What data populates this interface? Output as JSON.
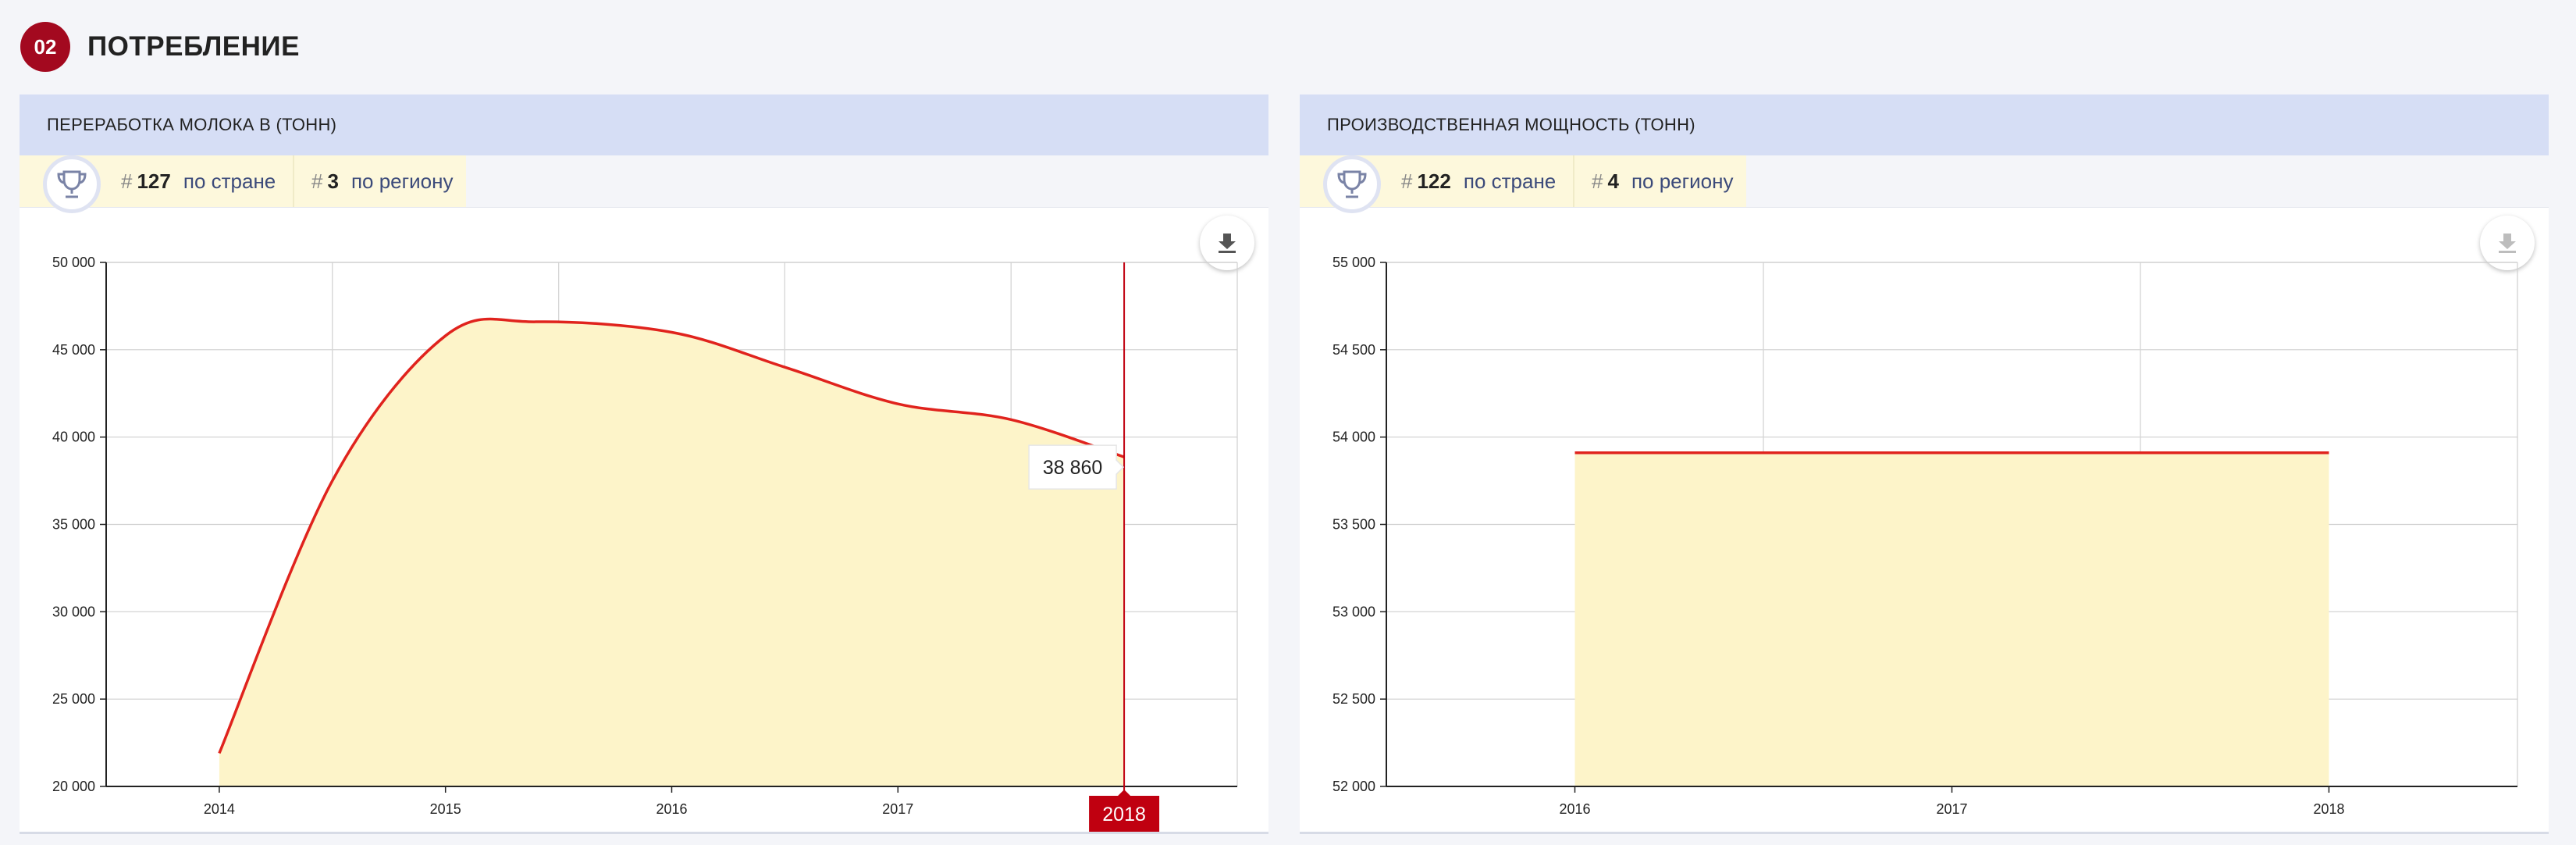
{
  "section": {
    "number": "02",
    "title": "ПОТРЕБЛЕНИЕ"
  },
  "colors": {
    "accent": "#a3091f",
    "line": "#e0231d",
    "fill": "#fdf4c9",
    "header": "#d6def5",
    "flag": "#c00010"
  },
  "icons": {
    "rank": "trophy-icon",
    "download": "download-icon"
  },
  "panels": [
    {
      "title": "ПЕРЕРАБОТКА МОЛОКА В (ТОНН)",
      "rank_country": {
        "hash": "#",
        "num": "127",
        "label": "по стране"
      },
      "rank_region": {
        "hash": "#",
        "num": "3",
        "label": "по региону"
      },
      "tooltip": "38 860",
      "highlight_year": "2018"
    },
    {
      "title": "ПРОИЗВОДСТВЕННАЯ МОЩНОСТЬ (ТОНН)",
      "rank_country": {
        "hash": "#",
        "num": "122",
        "label": "по стране"
      },
      "rank_region": {
        "hash": "#",
        "num": "4",
        "label": "по региону"
      }
    }
  ],
  "chart_data": [
    {
      "type": "area",
      "title": "ПЕРЕРАБОТКА МОЛОКА В (ТОНН)",
      "x": [
        2014,
        2014.5,
        2015,
        2015.4,
        2016,
        2016.5,
        2017,
        2017.5,
        2018
      ],
      "y": [
        21900,
        37500,
        45800,
        46600,
        46000,
        44000,
        41900,
        41000,
        38860
      ],
      "xlim": [
        2013.5,
        2018.5
      ],
      "xticks": [
        "2014",
        "2015",
        "2016",
        "2017",
        "2018"
      ],
      "ylim": [
        20000,
        50000
      ],
      "yticks": [
        "20 000",
        "25 000",
        "30 000",
        "35 000",
        "40 000",
        "45 000",
        "50 000"
      ],
      "grid": true,
      "cursor_x": 2018,
      "cursor_value": "38 860"
    },
    {
      "type": "area",
      "title": "ПРОИЗВОДСТВЕННАЯ МОЩНОСТЬ (ТОНН)",
      "x": [
        2016,
        2017,
        2018
      ],
      "y": [
        53910,
        53910,
        53910
      ],
      "xlim": [
        2015.5,
        2018.5
      ],
      "xticks": [
        "2016",
        "2017",
        "2018"
      ],
      "ylim": [
        52000,
        55000
      ],
      "yticks": [
        "52 000",
        "52 500",
        "53 000",
        "53 500",
        "54 000",
        "54 500",
        "55 000"
      ],
      "grid": true
    }
  ]
}
